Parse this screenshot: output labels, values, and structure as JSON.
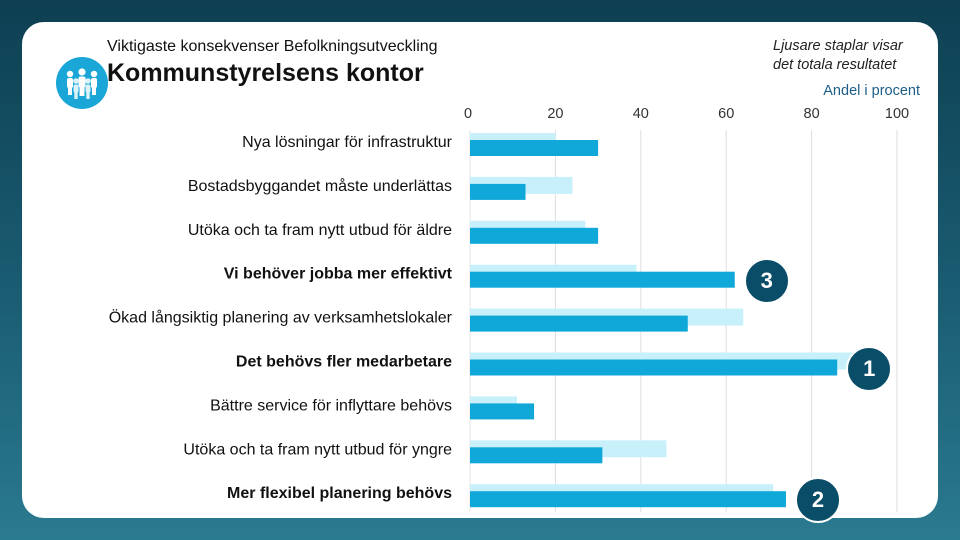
{
  "header": {
    "subtitle": "Viktigaste konsekvenser Befolkningsutveckling",
    "title": "Kommunstyrelsens kontor",
    "note_line1": "Ljusare staplar visar",
    "note_line2": "det totala resultatet"
  },
  "colors": {
    "dark_bar": "#0fa8d8",
    "light_bar": "#c7f0fb",
    "badge": "#0a4d68",
    "logo": "#1aa6d6"
  },
  "badges": [
    {
      "label": "3",
      "category_index": 3
    },
    {
      "label": "1",
      "category_index": 5
    },
    {
      "label": "2",
      "category_index": 8
    }
  ],
  "chart_data": {
    "type": "bar",
    "orientation": "horizontal",
    "xlabel": "Andel i procent",
    "xlim": [
      0,
      100
    ],
    "xticks": [
      "0",
      "20",
      "40",
      "60",
      "80",
      "100"
    ],
    "grid": true,
    "categories": [
      "Nya lösningar för infrastruktur",
      "Bostadsbyggandet måste underlättas",
      "Utöka och ta fram nytt utbud för äldre",
      "Vi behöver jobba mer effektivt",
      "Ökad långsiktig planering av verksamhetslokaler",
      "Det behövs fler medarbetare",
      "Bättre service för inflyttare behövs",
      "Utöka och ta fram nytt utbud för yngre",
      "Mer flexibel planering behövs"
    ],
    "bold_categories": [
      3,
      5,
      8
    ],
    "series": [
      {
        "name": "Totala resultatet",
        "values": [
          20,
          24,
          27,
          39,
          64,
          90,
          11,
          46,
          71
        ]
      },
      {
        "name": "Kommunstyrelsens kontor",
        "values": [
          30,
          13,
          30,
          62,
          51,
          86,
          15,
          31,
          74
        ]
      }
    ]
  }
}
